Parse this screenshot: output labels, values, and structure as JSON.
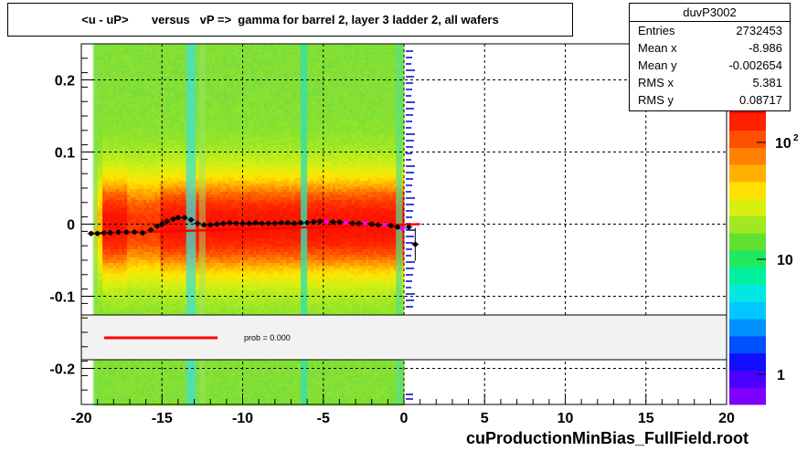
{
  "title": "<u - uP>       versus   vP =>  gamma for barrel 2, layer 3 ladder 2, all wafers",
  "footer": "cuProductionMinBias_FullField.root",
  "stats": {
    "name": "duvP3002",
    "rows": [
      {
        "k": "Entries",
        "v": "2732453"
      },
      {
        "k": "Mean x",
        "v": "-8.986"
      },
      {
        "k": "Mean y",
        "v": "-0.002654"
      },
      {
        "k": "RMS x",
        "v": "5.381"
      },
      {
        "k": "RMS y",
        "v": "0.08717"
      }
    ]
  },
  "legend": {
    "label": "prob = 0.000",
    "line_color": "#ff0000"
  },
  "colors": {
    "profile": "#000000",
    "fit": "#ff0000",
    "magenta": "#ff00ff",
    "stub": "#0000cc"
  },
  "chart_data": {
    "type": "heatmap",
    "title": "<u - uP>       versus   vP =>  gamma for barrel 2, layer 3 ladder 2, all wafers",
    "xlim": [
      -20,
      20
    ],
    "ylim": [
      -0.25,
      0.25
    ],
    "x_ticks": [
      "-20",
      "-15",
      "-10",
      "-5",
      "0",
      "5",
      "10",
      "15",
      "20"
    ],
    "y_ticks": [
      "0.2",
      "0.1",
      "0",
      "-0.1",
      "-0.2"
    ],
    "grid": true,
    "z_scale": "log",
    "z_ticks": [
      "1",
      "10",
      "10^2"
    ],
    "heatmap_x_range": [
      -19.2,
      0.0
    ],
    "profile": {
      "x": [
        -19.4,
        -19.0,
        -18.6,
        -18.2,
        -17.7,
        -17.2,
        -16.7,
        -16.2,
        -15.7,
        -15.3,
        -15.0,
        -14.7,
        -14.3,
        -14.0,
        -13.6,
        -13.2,
        -12.8,
        -12.4,
        -12.0,
        -11.6,
        -11.2,
        -10.8,
        -10.4,
        -10.0,
        -9.6,
        -9.2,
        -8.8,
        -8.4,
        -8.0,
        -7.6,
        -7.2,
        -6.8,
        -6.4,
        -6.0,
        -5.6,
        -5.2,
        -4.8,
        -4.4,
        -4.0,
        -3.6,
        -3.2,
        -2.8,
        -2.4,
        -2.0,
        -1.6,
        -1.2,
        -0.8,
        -0.4,
        -0.1,
        0.3,
        0.7
      ],
      "y": [
        -0.013,
        -0.013,
        -0.012,
        -0.012,
        -0.011,
        -0.011,
        -0.011,
        -0.012,
        -0.008,
        -0.003,
        0.0,
        0.004,
        0.007,
        0.009,
        0.009,
        0.006,
        0.001,
        -0.001,
        -0.001,
        0.0,
        0.001,
        0.002,
        0.001,
        0.001,
        0.001,
        0.002,
        0.001,
        0.001,
        0.001,
        0.002,
        0.002,
        0.001,
        0.002,
        0.002,
        0.003,
        0.004,
        0.004,
        0.003,
        0.003,
        0.002,
        0.001,
        0.001,
        0.001,
        0.0,
        -0.001,
        -0.001,
        -0.002,
        -0.004,
        -0.006,
        -0.004,
        -0.028
      ]
    },
    "fit": {
      "x": [
        -19.4,
        1.0
      ],
      "y": [
        -0.013,
        0.0
      ]
    },
    "legend_position": "bottom-inset"
  }
}
